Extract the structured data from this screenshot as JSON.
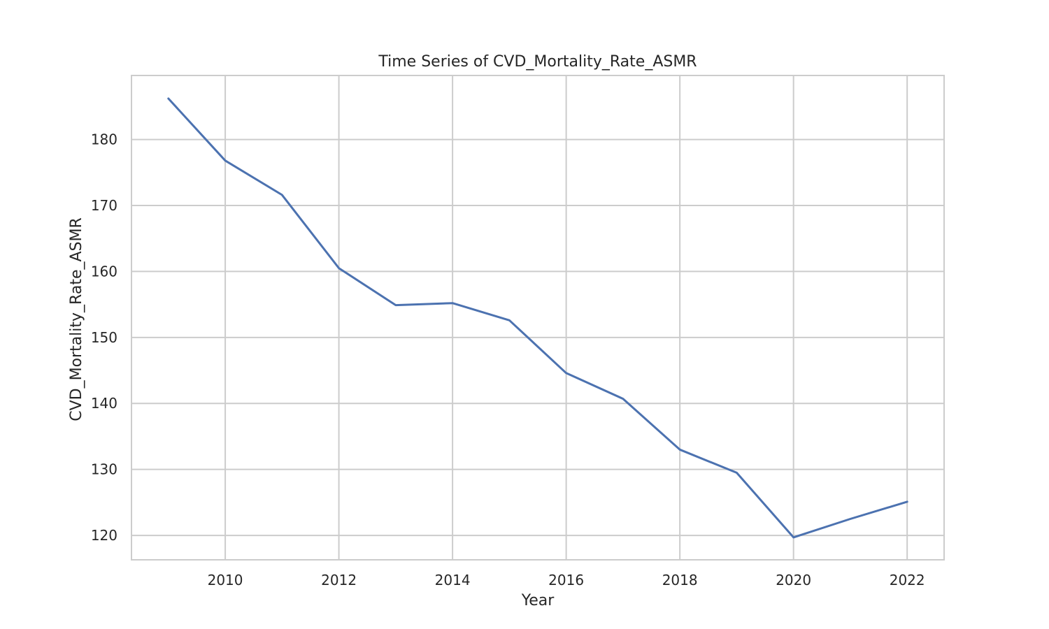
{
  "chart_data": {
    "type": "line",
    "title": "Time Series of CVD_Mortality_Rate_ASMR",
    "xlabel": "Year",
    "ylabel": "CVD_Mortality_Rate_ASMR",
    "xlim": [
      2008.35,
      2022.65
    ],
    "ylim": [
      116.3,
      189.7
    ],
    "xticks": [
      2010,
      2012,
      2014,
      2016,
      2018,
      2020,
      2022
    ],
    "yticks": [
      120,
      130,
      140,
      150,
      160,
      170,
      180
    ],
    "grid": true,
    "legend": "none",
    "line_color": "#4c72b0",
    "series": [
      {
        "x": [
          2009,
          2010,
          2011,
          2012,
          2013,
          2014,
          2015,
          2016,
          2017,
          2018,
          2019,
          2020,
          2021,
          2022
        ],
        "values": [
          186.2,
          176.8,
          171.6,
          160.5,
          154.9,
          155.2,
          152.6,
          144.6,
          140.7,
          133.0,
          129.5,
          119.7,
          122.5,
          125.1
        ]
      }
    ]
  }
}
